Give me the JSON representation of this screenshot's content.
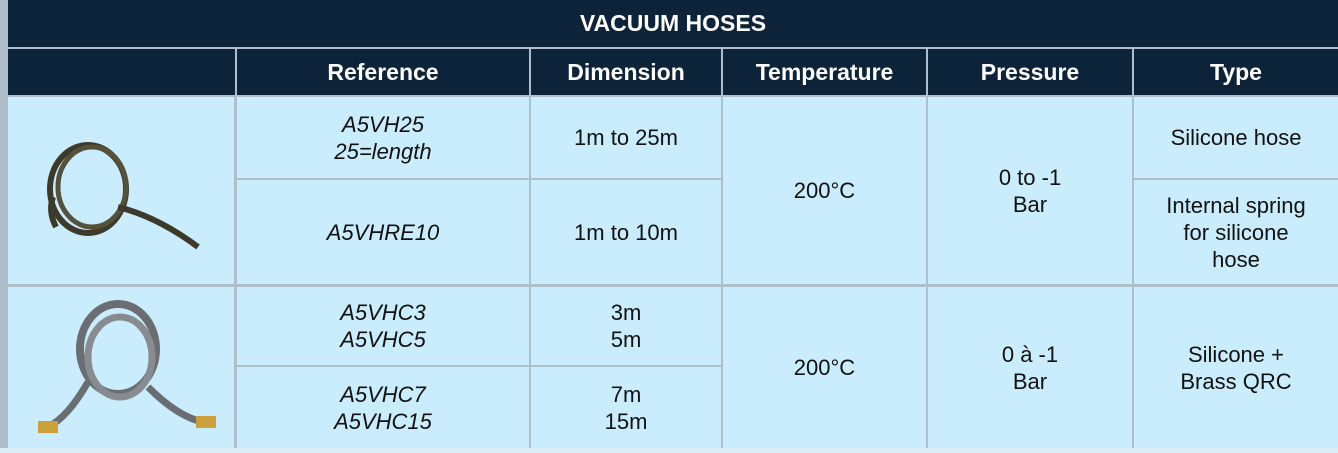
{
  "table": {
    "title": "VACUUM HOSES",
    "header": [
      "Reference",
      "Dimension",
      "Temperature",
      "Pressure",
      "Type"
    ],
    "groups": [
      {
        "rows": [
          {
            "reference": [
              "A5VH25",
              "25=length"
            ],
            "dimension": [
              "1m to 25m"
            ],
            "type": [
              "Silicone hose"
            ]
          },
          {
            "reference": [
              "A5VHRE10"
            ],
            "dimension": [
              "1m to 10m"
            ],
            "type": [
              "Internal spring",
              "for silicone",
              "hose"
            ]
          }
        ],
        "temperature": [
          "200°C"
        ],
        "pressure": [
          "0 to -1",
          "Bar"
        ]
      },
      {
        "rows": [
          {
            "reference": [
              "A5VHC3",
              "A5VHC5"
            ],
            "dimension": [
              "3m",
              "5m"
            ]
          },
          {
            "reference": [
              "A5VHC7",
              "A5VHC15"
            ],
            "dimension": [
              "7m",
              "15m"
            ]
          }
        ],
        "temperature": [
          "200°C"
        ],
        "pressure": [
          "0 à -1",
          "Bar"
        ],
        "type": [
          "Silicone +",
          "Brass QRC"
        ]
      }
    ]
  }
}
